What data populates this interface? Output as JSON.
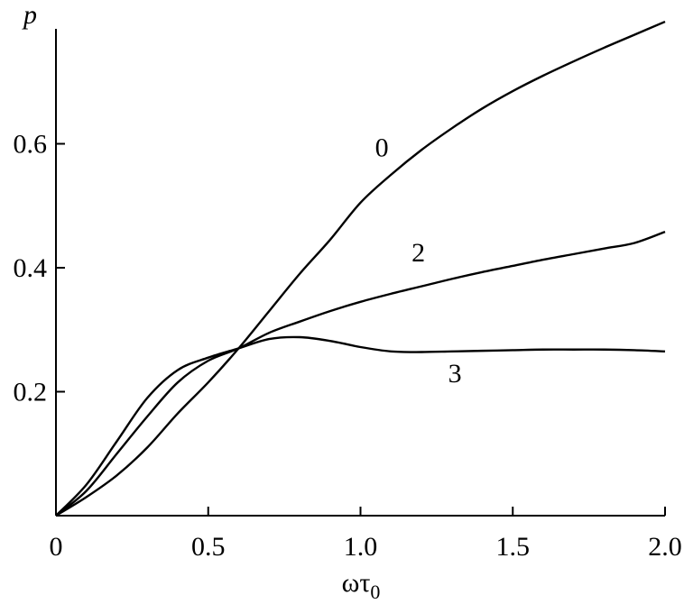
{
  "chart_data": {
    "type": "line",
    "title": "",
    "xlabel_main": "ωτ",
    "xlabel_sub": "0",
    "ylabel": "p",
    "xlim": [
      0,
      2.0
    ],
    "ylim": [
      0,
      0.8
    ],
    "x_ticks": [
      {
        "value": 0,
        "label": "0"
      },
      {
        "value": 0.5,
        "label": "0.5"
      },
      {
        "value": 1.0,
        "label": "1.0"
      },
      {
        "value": 1.5,
        "label": "1.5"
      },
      {
        "value": 2.0,
        "label": "2.0"
      }
    ],
    "y_ticks": [
      {
        "value": 0.2,
        "label": "0.2"
      },
      {
        "value": 0.4,
        "label": "0.4"
      },
      {
        "value": 0.6,
        "label": "0.6"
      }
    ],
    "grid": false,
    "series": [
      {
        "name": "0",
        "x": [
          0,
          0.1,
          0.2,
          0.3,
          0.4,
          0.5,
          0.6,
          0.7,
          0.8,
          0.9,
          1.0,
          1.1,
          1.2,
          1.3,
          1.4,
          1.5,
          1.6,
          1.7,
          1.8,
          1.9,
          2.0
        ],
        "y": [
          0,
          0.03,
          0.065,
          0.11,
          0.165,
          0.215,
          0.27,
          0.33,
          0.39,
          0.445,
          0.505,
          0.55,
          0.59,
          0.625,
          0.657,
          0.685,
          0.71,
          0.733,
          0.755,
          0.776,
          0.797
        ]
      },
      {
        "name": "2",
        "x": [
          0,
          0.1,
          0.2,
          0.3,
          0.4,
          0.5,
          0.6,
          0.7,
          0.8,
          0.9,
          1.0,
          1.1,
          1.2,
          1.3,
          1.4,
          1.5,
          1.6,
          1.7,
          1.8,
          1.9,
          2.0
        ],
        "y": [
          0,
          0.04,
          0.1,
          0.16,
          0.215,
          0.25,
          0.27,
          0.295,
          0.313,
          0.33,
          0.345,
          0.358,
          0.37,
          0.382,
          0.393,
          0.403,
          0.413,
          0.422,
          0.431,
          0.44,
          0.458
        ]
      },
      {
        "name": "3",
        "x": [
          0,
          0.1,
          0.2,
          0.3,
          0.4,
          0.5,
          0.6,
          0.7,
          0.8,
          0.9,
          1.0,
          1.1,
          1.2,
          1.3,
          1.4,
          1.5,
          1.6,
          1.7,
          1.8,
          1.9,
          2.0
        ],
        "y": [
          0,
          0.05,
          0.12,
          0.19,
          0.235,
          0.255,
          0.27,
          0.285,
          0.288,
          0.282,
          0.272,
          0.265,
          0.264,
          0.265,
          0.266,
          0.267,
          0.268,
          0.268,
          0.268,
          0.267,
          0.265
        ]
      }
    ],
    "curve_labels": [
      {
        "series": "0",
        "text": "0",
        "x": 1.07,
        "y": 0.58
      },
      {
        "series": "2",
        "text": "2",
        "x": 1.19,
        "y": 0.41
      },
      {
        "series": "3",
        "text": "3",
        "x": 1.31,
        "y": 0.215
      }
    ]
  }
}
